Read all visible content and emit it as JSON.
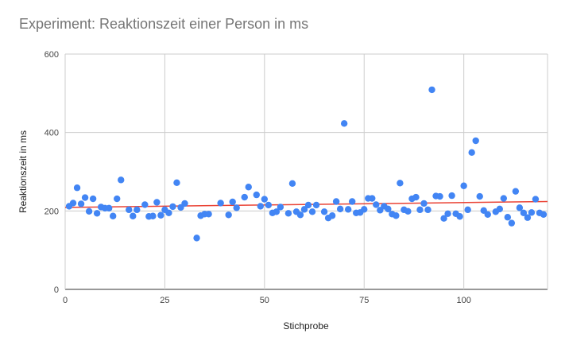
{
  "chart_data": {
    "type": "scatter",
    "title": "Experiment: Reaktionszeit einer Person in ms",
    "xlabel": "Stichprobe",
    "ylabel": "Reaktionszeit in ms",
    "xlim": [
      0,
      121
    ],
    "ylim": [
      0,
      600
    ],
    "xticks": [
      0,
      25,
      50,
      75,
      100
    ],
    "yticks": [
      0,
      200,
      400,
      600
    ],
    "grid": true,
    "colors": {
      "points": "#4285f4",
      "trendline": "#ea4335",
      "grid": "#cccccc",
      "title": "#757575"
    },
    "trendline": {
      "type": "linear",
      "x": [
        0,
        121
      ],
      "y": [
        209,
        224
      ]
    },
    "points": [
      [
        1,
        212
      ],
      [
        2,
        220
      ],
      [
        3,
        259
      ],
      [
        4,
        218
      ],
      [
        5,
        234
      ],
      [
        6,
        199
      ],
      [
        7,
        231
      ],
      [
        8,
        194
      ],
      [
        9,
        210
      ],
      [
        10,
        207
      ],
      [
        11,
        207
      ],
      [
        12,
        187
      ],
      [
        13,
        231
      ],
      [
        14,
        279
      ],
      [
        16,
        203
      ],
      [
        17,
        187
      ],
      [
        18,
        203
      ],
      [
        20,
        216
      ],
      [
        21,
        186
      ],
      [
        22,
        187
      ],
      [
        23,
        222
      ],
      [
        24,
        189
      ],
      [
        25,
        203
      ],
      [
        26,
        195
      ],
      [
        27,
        211
      ],
      [
        28,
        272
      ],
      [
        29,
        209
      ],
      [
        30,
        219
      ],
      [
        33,
        131
      ],
      [
        34,
        188
      ],
      [
        35,
        192
      ],
      [
        36,
        192
      ],
      [
        39,
        220
      ],
      [
        41,
        190
      ],
      [
        42,
        223
      ],
      [
        43,
        208
      ],
      [
        45,
        235
      ],
      [
        46,
        261
      ],
      [
        48,
        241
      ],
      [
        49,
        212
      ],
      [
        50,
        230
      ],
      [
        51,
        215
      ],
      [
        52,
        195
      ],
      [
        53,
        198
      ],
      [
        54,
        210
      ],
      [
        56,
        194
      ],
      [
        57,
        270
      ],
      [
        58,
        198
      ],
      [
        59,
        190
      ],
      [
        60,
        204
      ],
      [
        61,
        215
      ],
      [
        62,
        198
      ],
      [
        63,
        215
      ],
      [
        65,
        198
      ],
      [
        66,
        182
      ],
      [
        67,
        188
      ],
      [
        68,
        224
      ],
      [
        69,
        205
      ],
      [
        70,
        423
      ],
      [
        71,
        204
      ],
      [
        72,
        224
      ],
      [
        73,
        195
      ],
      [
        74,
        196
      ],
      [
        75,
        204
      ],
      [
        76,
        232
      ],
      [
        77,
        232
      ],
      [
        78,
        216
      ],
      [
        79,
        202
      ],
      [
        80,
        212
      ],
      [
        81,
        205
      ],
      [
        82,
        192
      ],
      [
        83,
        188
      ],
      [
        84,
        271
      ],
      [
        85,
        203
      ],
      [
        86,
        199
      ],
      [
        87,
        231
      ],
      [
        88,
        235
      ],
      [
        89,
        203
      ],
      [
        90,
        219
      ],
      [
        91,
        203
      ],
      [
        92,
        509
      ],
      [
        93,
        238
      ],
      [
        94,
        237
      ],
      [
        95,
        181
      ],
      [
        96,
        193
      ],
      [
        97,
        239
      ],
      [
        98,
        193
      ],
      [
        99,
        186
      ],
      [
        100,
        264
      ],
      [
        101,
        203
      ],
      [
        102,
        349
      ],
      [
        103,
        379
      ],
      [
        104,
        237
      ],
      [
        105,
        201
      ],
      [
        106,
        191
      ],
      [
        108,
        198
      ],
      [
        109,
        205
      ],
      [
        110,
        232
      ],
      [
        111,
        184
      ],
      [
        112,
        169
      ],
      [
        113,
        250
      ],
      [
        114,
        208
      ],
      [
        115,
        195
      ],
      [
        116,
        183
      ],
      [
        117,
        196
      ],
      [
        118,
        230
      ],
      [
        119,
        195
      ],
      [
        120,
        191
      ]
    ]
  }
}
